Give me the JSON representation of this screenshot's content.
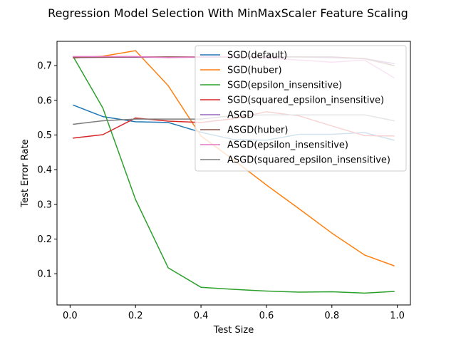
{
  "chart_data": {
    "type": "line",
    "title": "Regression Model Selection With MinMaxScaler Feature Scaling",
    "xlabel": "Test Size",
    "ylabel": "Test Error Rate",
    "xlim": [
      -0.04,
      1.04
    ],
    "ylim": [
      0.01,
      0.77
    ],
    "xticks": [
      0.0,
      0.2,
      0.4,
      0.6,
      0.8,
      1.0
    ],
    "xtick_labels": [
      "0.0",
      "0.2",
      "0.4",
      "0.6",
      "0.8",
      "1.0"
    ],
    "yticks": [
      0.1,
      0.2,
      0.3,
      0.4,
      0.5,
      0.6,
      0.7
    ],
    "ytick_labels": [
      "0.1",
      "0.2",
      "0.3",
      "0.4",
      "0.5",
      "0.6",
      "0.7"
    ],
    "legend_position": "top-right",
    "x": [
      0.01,
      0.1,
      0.2,
      0.3,
      0.4,
      0.5,
      0.6,
      0.7,
      0.8,
      0.9,
      0.99
    ],
    "series": [
      {
        "name": "SGD(default)",
        "color": "#1f77b4",
        "values": [
          0.586,
          0.553,
          0.538,
          0.536,
          0.508,
          0.487,
          0.485,
          0.502,
          0.502,
          0.507,
          0.485
        ]
      },
      {
        "name": "SGD(huber)",
        "color": "#ff7f0e",
        "values": [
          0.722,
          0.727,
          0.743,
          0.642,
          0.497,
          0.428,
          0.356,
          0.287,
          0.217,
          0.154,
          0.123
        ]
      },
      {
        "name": "SGD(epsilon_insensitive)",
        "color": "#2ca02c",
        "values": [
          0.725,
          0.578,
          0.314,
          0.117,
          0.061,
          0.055,
          0.05,
          0.047,
          0.048,
          0.044,
          0.049
        ]
      },
      {
        "name": "SGD(squared_epsilon_insensitive)",
        "color": "#d62728",
        "values": [
          0.491,
          0.501,
          0.549,
          0.54,
          0.536,
          0.547,
          0.567,
          0.555,
          0.526,
          0.498,
          0.497
        ]
      },
      {
        "name": "ASGD",
        "color": "#9467bd",
        "values": [
          0.723,
          0.724,
          0.724,
          0.724,
          0.724,
          0.725,
          0.725,
          0.725,
          0.723,
          0.72,
          0.706
        ]
      },
      {
        "name": "ASGD(huber)",
        "color": "#8c564b",
        "values": [
          0.724,
          0.724,
          0.725,
          0.725,
          0.725,
          0.725,
          0.725,
          0.725,
          0.725,
          0.72,
          0.7
        ]
      },
      {
        "name": "ASGD(epsilon_insensitive)",
        "color": "#e377c2",
        "values": [
          0.726,
          0.726,
          0.726,
          0.723,
          0.725,
          0.726,
          0.722,
          0.716,
          0.71,
          0.716,
          0.665
        ]
      },
      {
        "name": "ASGD(squared_epsilon_insensitive)",
        "color": "#7f7f7f",
        "values": [
          0.531,
          0.541,
          0.546,
          0.546,
          0.546,
          0.556,
          0.558,
          0.558,
          0.558,
          0.558,
          0.541
        ]
      }
    ]
  }
}
